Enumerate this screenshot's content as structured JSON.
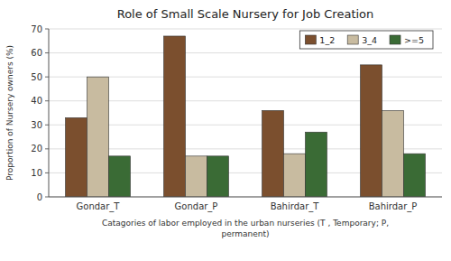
{
  "chart_data": {
    "type": "bar",
    "title": "Role of Small Scale Nursery for Job Creation",
    "x_label": "Catagories of labor employed in the urban nurseries (T , Temporary; P,\npermanent)",
    "y_label": "Proportion of Nursery owners (%)",
    "categories": [
      "Gondar_T",
      "Gondar_P",
      "Bahirdar_T",
      "Bahirdar_P"
    ],
    "series": [
      {
        "name": "1_2",
        "color": "#7B4F2E",
        "values": [
          33,
          67,
          36,
          55
        ]
      },
      {
        "name": "3_4",
        "color": "#C8BBA0",
        "values": [
          50,
          17,
          18,
          36
        ]
      },
      {
        "name": ">=5",
        "color": "#3A6B35",
        "values": [
          17,
          17,
          27,
          18
        ]
      }
    ],
    "ylim": [
      0,
      70
    ],
    "yticks": [
      0,
      10,
      20,
      30,
      40,
      50,
      60,
      70
    ],
    "grid": true,
    "legend": "upper right"
  }
}
